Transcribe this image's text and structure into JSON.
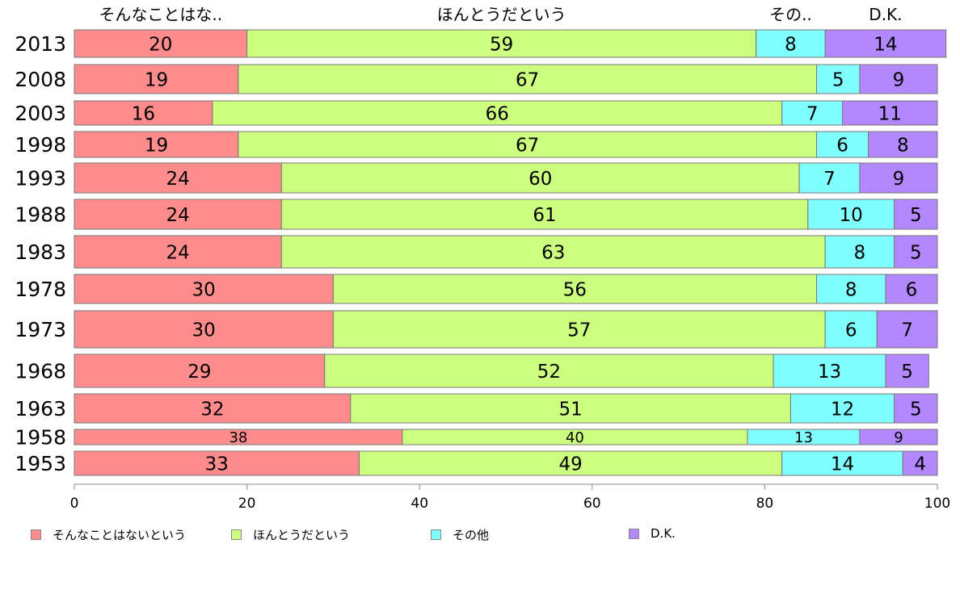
{
  "chart_data": {
    "type": "bar",
    "orientation": "horizontal",
    "stacked": true,
    "title": "",
    "xlabel": "",
    "ylabel": "",
    "xlim": [
      0,
      100
    ],
    "xticks": [
      "0",
      "20",
      "40",
      "60",
      "80",
      "100"
    ],
    "categories": [
      "2013",
      "2008",
      "2003",
      "1998",
      "1993",
      "1988",
      "1983",
      "1978",
      "1973",
      "1968",
      "1963",
      "1958",
      "1953"
    ],
    "series": [
      {
        "name": "そんなことはないという",
        "header": "そんなことはな..",
        "color": "#ff8c8c",
        "values": [
          20,
          19,
          16,
          19,
          24,
          24,
          24,
          30,
          30,
          29,
          32,
          38,
          33
        ]
      },
      {
        "name": "ほんとうだという",
        "header": "ほんとうだという",
        "color": "#ccff80",
        "values": [
          59,
          67,
          66,
          67,
          60,
          61,
          63,
          56,
          57,
          52,
          51,
          40,
          49
        ]
      },
      {
        "name": "その他",
        "header": "その..",
        "color": "#80ffff",
        "values": [
          8,
          5,
          7,
          6,
          7,
          10,
          8,
          8,
          6,
          13,
          12,
          13,
          14
        ]
      },
      {
        "name": "D.K.",
        "header": "D.K.",
        "color": "#b388ff",
        "values": [
          14,
          9,
          11,
          8,
          9,
          5,
          5,
          6,
          7,
          5,
          5,
          9,
          4
        ]
      }
    ],
    "grid": false,
    "legend_position": "bottom"
  }
}
